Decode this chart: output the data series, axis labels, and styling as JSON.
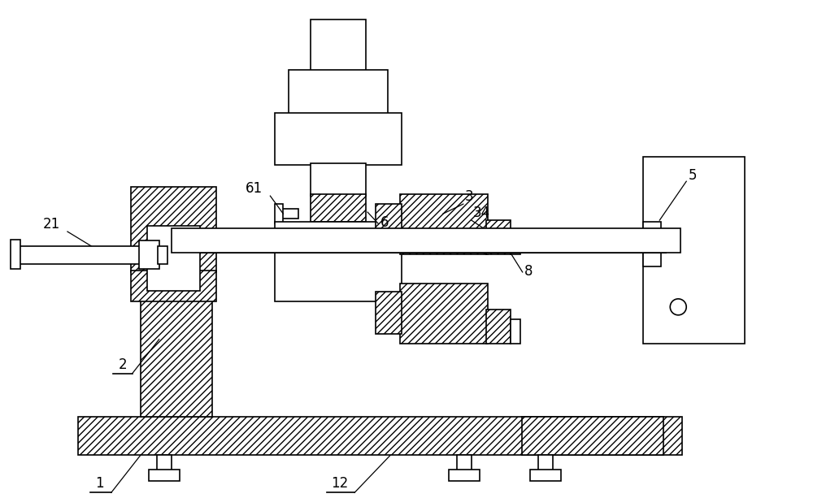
{
  "bg_color": "#ffffff",
  "line_color": "#000000",
  "hatch": "////",
  "fig_width": 10.0,
  "fig_height": 6.13,
  "dpi": 100
}
